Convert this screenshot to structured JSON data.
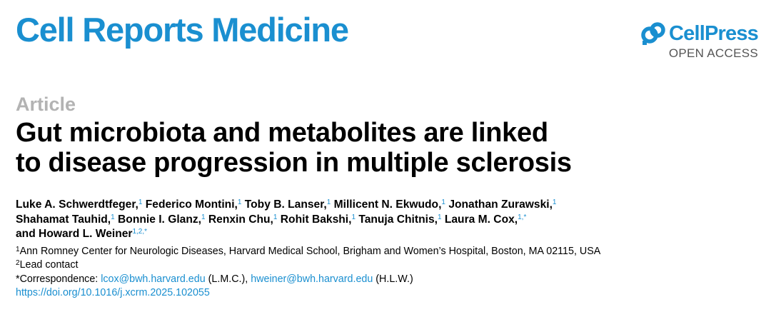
{
  "header": {
    "journal": "Cell Reports Medicine",
    "publisher": "CellPress",
    "access": "OPEN ACCESS"
  },
  "article": {
    "type": "Article",
    "title_lines": [
      "Gut microbiota and metabolites are linked",
      "to disease progression in multiple sclerosis"
    ]
  },
  "authors": [
    {
      "name": "Luke A. Schwerdtfeger,",
      "aff": "1"
    },
    {
      "name": "Federico Montini,",
      "aff": "1"
    },
    {
      "name": "Toby B. Lanser,",
      "aff": "1"
    },
    {
      "name": "Millicent N. Ekwudo,",
      "aff": "1"
    },
    {
      "name": "Jonathan Zurawski,",
      "aff": "1"
    },
    {
      "name": "Shahamat Tauhid,",
      "aff": "1"
    },
    {
      "name": "Bonnie I. Glanz,",
      "aff": "1"
    },
    {
      "name": "Renxin Chu,",
      "aff": "1"
    },
    {
      "name": "Rohit Bakshi,",
      "aff": "1"
    },
    {
      "name": "Tanuja Chitnis,",
      "aff": "1"
    },
    {
      "name": "Laura M. Cox,",
      "aff": "1,*"
    },
    {
      "name": "and Howard L. Weiner",
      "aff": "1,2,*"
    }
  ],
  "notes": {
    "affiliation_mark": "1",
    "affiliation": "Ann Romney Center for Neurologic Diseases, Harvard Medical School, Brigham and Women’s Hospital, Boston, MA 02115, USA",
    "lead_mark": "2",
    "lead": "Lead contact",
    "correspondence_label": "*Correspondence: ",
    "email1": "lcox@bwh.harvard.edu",
    "email1_who": " (L.M.C.), ",
    "email2": "hweiner@bwh.harvard.edu",
    "email2_who": " (H.L.W.)",
    "doi": "https://doi.org/10.1016/j.xcrm.2025.102055"
  },
  "colors": {
    "brand_blue": "#1a8fd0",
    "article_type_gray": "#b3b3b3"
  }
}
